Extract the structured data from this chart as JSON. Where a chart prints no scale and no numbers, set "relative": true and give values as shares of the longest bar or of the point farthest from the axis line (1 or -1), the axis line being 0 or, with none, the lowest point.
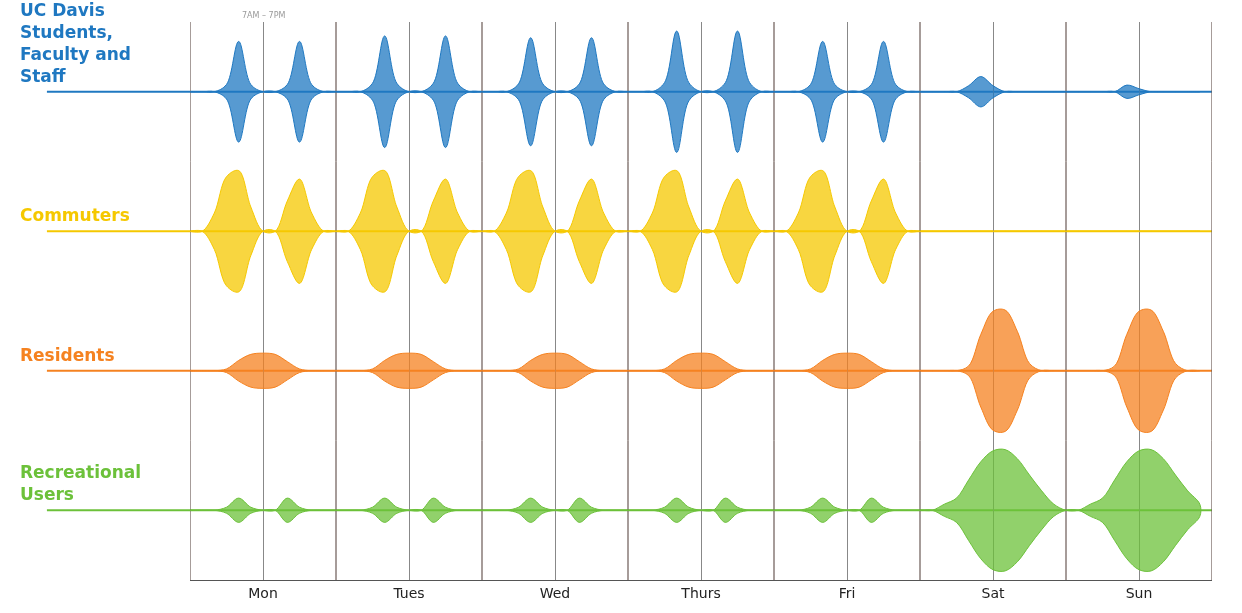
{
  "chart_data": [
    {
      "type": "area",
      "relative": true,
      "grid": "x",
      "legend": false,
      "tick_labels": false,
      "annotations": [
        "7AM – 7PM"
      ],
      "categories": [
        null,
        null,
        null,
        null,
        null,
        null,
        null,
        null,
        null,
        null,
        null,
        null,
        null,
        null,
        null,
        null,
        null,
        null,
        null,
        null,
        null,
        null,
        null,
        null,
        null,
        null,
        null,
        null,
        null,
        null,
        null,
        null,
        null,
        null,
        null,
        null,
        null,
        null,
        null,
        null,
        null,
        null,
        null,
        null,
        null,
        null,
        null,
        null,
        null,
        null,
        null,
        null,
        null,
        null,
        null,
        null,
        null,
        null,
        null,
        null,
        null,
        null,
        null,
        null,
        null,
        null,
        null,
        null,
        null,
        null,
        null,
        null,
        null,
        null,
        null,
        null,
        null,
        null,
        null,
        null,
        null,
        null,
        null,
        null
      ],
      "series": [
        {
          "name": "UC Davis Students, Faculty and Staff",
          "color": "#1f78c1",
          "values": [
            0,
            0,
            0,
            0.12,
            0.83,
            0.12,
            0,
            0,
            0.12,
            0.83,
            0.12,
            0,
            0,
            0,
            0,
            0.14,
            0.92,
            0.14,
            0,
            0,
            0.14,
            0.92,
            0.14,
            0,
            0,
            0,
            0,
            0.13,
            0.89,
            0.13,
            0,
            0,
            0.13,
            0.89,
            0.13,
            0,
            0,
            0,
            0,
            0.15,
            1,
            0.15,
            0,
            0,
            0.15,
            1,
            0.15,
            0,
            0,
            0,
            0,
            0.12,
            0.83,
            0.12,
            0,
            0,
            0.12,
            0.83,
            0.12,
            0,
            0,
            0,
            0,
            0,
            0.1,
            0.25,
            0.1,
            0,
            0,
            0,
            0,
            0,
            0,
            0,
            0,
            0,
            0,
            0.11,
            0.05,
            0,
            0,
            0,
            0,
            0
          ]
        }
      ]
    },
    {
      "type": "area",
      "relative": true,
      "grid": "x",
      "legend": false,
      "tick_labels": false,
      "categories": [
        null,
        null,
        null,
        null,
        null,
        null,
        null,
        null,
        null,
        null,
        null,
        null,
        null,
        null,
        null,
        null,
        null,
        null,
        null,
        null,
        null,
        null,
        null,
        null,
        null,
        null,
        null,
        null,
        null,
        null,
        null,
        null,
        null,
        null,
        null,
        null,
        null,
        null,
        null,
        null,
        null,
        null,
        null,
        null,
        null,
        null,
        null,
        null,
        null,
        null,
        null,
        null,
        null,
        null,
        null,
        null,
        null,
        null,
        null,
        null,
        null,
        null,
        null,
        null,
        null,
        null,
        null,
        null,
        null,
        null,
        null,
        null,
        null,
        null,
        null,
        null,
        null,
        null,
        null,
        null,
        null,
        null,
        null,
        null
      ],
      "series": [
        {
          "name": "Commuters",
          "color": "#f5c800",
          "values": [
            0,
            0,
            0.3,
            0.9,
            1,
            0.4,
            0,
            0,
            0.5,
            0.86,
            0.3,
            0,
            0,
            0,
            0.3,
            0.9,
            1,
            0.4,
            0,
            0,
            0.5,
            0.86,
            0.3,
            0,
            0,
            0,
            0.3,
            0.9,
            1,
            0.4,
            0,
            0,
            0.5,
            0.86,
            0.3,
            0,
            0,
            0,
            0.3,
            0.9,
            1,
            0.4,
            0,
            0,
            0.5,
            0.86,
            0.3,
            0,
            0,
            0,
            0.3,
            0.9,
            1,
            0.4,
            0,
            0,
            0.5,
            0.86,
            0.3,
            0,
            0,
            0,
            0,
            0,
            0,
            0,
            0,
            0,
            0,
            0,
            0,
            0,
            0,
            0,
            0,
            0,
            0,
            0,
            0,
            0,
            0,
            0,
            0,
            0
          ]
        }
      ]
    },
    {
      "type": "area",
      "relative": true,
      "grid": "x",
      "legend": false,
      "tick_labels": false,
      "categories": [
        null,
        null,
        null,
        null,
        null,
        null,
        null,
        null,
        null,
        null,
        null,
        null,
        null,
        null,
        null,
        null,
        null,
        null,
        null,
        null,
        null,
        null,
        null,
        null,
        null,
        null,
        null,
        null,
        null,
        null,
        null,
        null,
        null,
        null,
        null,
        null,
        null,
        null,
        null,
        null,
        null,
        null,
        null,
        null,
        null,
        null,
        null,
        null,
        null,
        null,
        null,
        null,
        null,
        null,
        null,
        null,
        null,
        null,
        null,
        null,
        null,
        null,
        null,
        null,
        null,
        null,
        null,
        null,
        null,
        null,
        null,
        null,
        null,
        null,
        null,
        null,
        null,
        null,
        null,
        null,
        null,
        null,
        null,
        null
      ],
      "series": [
        {
          "name": "Residents",
          "color": "#f58220",
          "values": [
            0,
            0,
            0,
            0.03,
            0.17,
            0.27,
            0.29,
            0.27,
            0.15,
            0.03,
            0,
            0,
            0,
            0,
            0,
            0.03,
            0.17,
            0.27,
            0.29,
            0.27,
            0.15,
            0.03,
            0,
            0,
            0,
            0,
            0,
            0.03,
            0.17,
            0.27,
            0.29,
            0.27,
            0.15,
            0.03,
            0,
            0,
            0,
            0,
            0,
            0.03,
            0.17,
            0.27,
            0.29,
            0.27,
            0.15,
            0.03,
            0,
            0,
            0,
            0,
            0,
            0.03,
            0.17,
            0.27,
            0.29,
            0.27,
            0.15,
            0.03,
            0,
            0,
            0,
            0,
            0,
            0,
            0.08,
            0.6,
            0.98,
            1,
            0.65,
            0.12,
            0,
            0,
            0,
            0,
            0,
            0,
            0.08,
            0.6,
            0.98,
            1,
            0.65,
            0.12,
            0,
            0
          ]
        }
      ]
    },
    {
      "type": "area",
      "relative": true,
      "grid": "x",
      "legend": false,
      "tick_labels": "x",
      "categories": [
        null,
        null,
        null,
        null,
        null,
        null,
        "Mon",
        null,
        null,
        null,
        null,
        null,
        null,
        null,
        null,
        null,
        null,
        null,
        "Tues",
        null,
        null,
        null,
        null,
        null,
        null,
        null,
        null,
        null,
        null,
        null,
        "Wed",
        null,
        null,
        null,
        null,
        null,
        null,
        null,
        null,
        null,
        null,
        null,
        "Thurs",
        null,
        null,
        null,
        null,
        null,
        null,
        null,
        null,
        null,
        null,
        null,
        "Fri",
        null,
        null,
        null,
        null,
        null,
        null,
        null,
        null,
        null,
        null,
        null,
        "Sat",
        null,
        null,
        null,
        null,
        null,
        null,
        null,
        null,
        null,
        null,
        null,
        "Sun",
        null,
        null,
        null,
        null,
        null
      ],
      "series": [
        {
          "name": "Recreational Users",
          "color": "#6cc13a",
          "values": [
            0,
            0,
            0,
            0.05,
            0.2,
            0.05,
            0,
            0,
            0.2,
            0.05,
            0,
            0,
            0,
            0,
            0,
            0.05,
            0.2,
            0.05,
            0,
            0,
            0.2,
            0.05,
            0,
            0,
            0,
            0,
            0,
            0.05,
            0.2,
            0.05,
            0,
            0,
            0.2,
            0.05,
            0,
            0,
            0,
            0,
            0,
            0.05,
            0.2,
            0.05,
            0,
            0,
            0.2,
            0.05,
            0,
            0,
            0,
            0,
            0,
            0.05,
            0.2,
            0.05,
            0,
            0,
            0.2,
            0.05,
            0,
            0,
            0,
            0,
            0.1,
            0.2,
            0.5,
            0.8,
            0.98,
            1,
            0.85,
            0.58,
            0.32,
            0.1,
            0,
            0,
            0.1,
            0.2,
            0.5,
            0.8,
            0.98,
            1,
            0.85,
            0.58,
            0.32,
            0.1
          ]
        }
      ]
    }
  ]
}
